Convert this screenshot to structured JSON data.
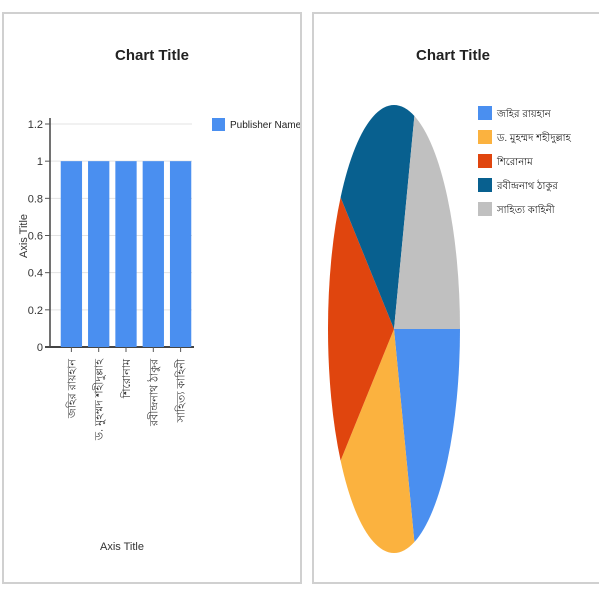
{
  "chart_data": [
    {
      "type": "bar",
      "title": "Chart Title",
      "xlabel": "Axis Title",
      "ylabel": "Axis Title",
      "ylim": [
        0,
        1.2
      ],
      "yticks": [
        "0",
        "0.2",
        "0.4",
        "0.6",
        "0.8",
        "1",
        "1.2"
      ],
      "categories": [
        "জহির রায়হান",
        "ড. মুহম্মদ শহীদুল্লাহ",
        "শিরোনাম",
        "রবীন্দ্রনাথ ঠাকুর",
        "সাহিত্য কাহিনী"
      ],
      "series": [
        {
          "name": "Publisher Name",
          "values": [
            1,
            1,
            1,
            1,
            1
          ]
        }
      ],
      "grid": true,
      "legend": "right",
      "colors": [
        "#4a8ff0"
      ]
    },
    {
      "type": "pie",
      "title": "Chart Title",
      "labels": [
        "জহির রায়হান",
        "ড. মুহম্মদ শহীদুল্লাহ",
        "শিরোনাম",
        "রবীন্দ্রনাথ ঠাকুর",
        "সাহিত্য কাহিনী"
      ],
      "values": [
        1,
        1,
        1,
        1,
        1
      ],
      "legend": "right",
      "colors": [
        "#4a8ff0",
        "#fbb23f",
        "#e0450e",
        "#08608f",
        "#c0c0c0"
      ]
    }
  ]
}
